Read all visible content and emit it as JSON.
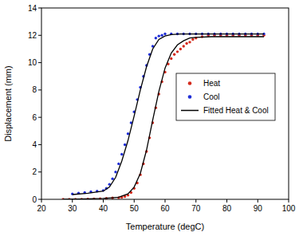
{
  "chart_data": {
    "type": "scatter",
    "x_label": "Temperature (degC)",
    "y_label": "Displacement (mm)",
    "xlim": [
      20,
      100
    ],
    "xticks": [
      20,
      30,
      40,
      50,
      60,
      70,
      80,
      90,
      100
    ],
    "ylim": [
      0,
      14
    ],
    "yticks": [
      0,
      2,
      4,
      6,
      8,
      10,
      12,
      14
    ],
    "grid": false,
    "legend": "right",
    "series": [
      {
        "name": "Heat",
        "type": "scatter",
        "color": "#d42a1c",
        "marker": "circle",
        "x": [
          27,
          29,
          31,
          33,
          35,
          37,
          39,
          41,
          43,
          45,
          46,
          47,
          48,
          49,
          50,
          51,
          52,
          53,
          54,
          55,
          56,
          57,
          58,
          59,
          60,
          61,
          62,
          63,
          64,
          65,
          66,
          67,
          68,
          69,
          70,
          72,
          74,
          76,
          78,
          80,
          82,
          84,
          86,
          88,
          90,
          92
        ],
        "values": [
          0,
          0,
          0,
          0,
          0.02,
          0.03,
          0.05,
          0.07,
          0.1,
          0.12,
          0.15,
          0.2,
          0.3,
          0.5,
          0.8,
          1.2,
          1.8,
          2.6,
          3.5,
          4.5,
          5.6,
          6.7,
          7.7,
          8.6,
          9.3,
          9.9,
          10.3,
          10.6,
          10.8,
          11,
          11.2,
          11.4,
          11.5,
          11.7,
          11.8,
          11.9,
          12,
          12,
          12,
          12,
          12,
          12,
          12,
          12,
          12,
          12
        ]
      },
      {
        "name": "Cool",
        "type": "scatter",
        "color": "#1f2ed6",
        "marker": "circle",
        "x": [
          30,
          32,
          34,
          36,
          38,
          40,
          41,
          42,
          43,
          44,
          45,
          46,
          47,
          48,
          49,
          50,
          51,
          52,
          53,
          54,
          55,
          56,
          57,
          58,
          59,
          60,
          62,
          64,
          66,
          68,
          70,
          72,
          74,
          76,
          78,
          80,
          82,
          84,
          86,
          88,
          90,
          92
        ],
        "values": [
          0.4,
          0.45,
          0.5,
          0.55,
          0.6,
          0.65,
          0.8,
          1.1,
          1.5,
          2,
          2.6,
          3.3,
          4,
          4.8,
          5.6,
          6.4,
          7.3,
          8.2,
          9,
          9.8,
          10.6,
          11.2,
          11.8,
          11.95,
          12,
          12.1,
          12.1,
          12.1,
          12.1,
          12.1,
          12.1,
          12.1,
          12.1,
          12.1,
          12.1,
          12.1,
          12.1,
          12.1,
          12.1,
          12.1,
          12.1,
          12.1
        ]
      },
      {
        "name": "Fitted Heat & Cool",
        "type": "line",
        "color": "#000000",
        "line_style": "solid",
        "x": [
          27,
          35,
          40,
          45,
          48,
          50,
          52,
          54,
          56,
          58,
          60,
          62,
          64,
          66,
          68,
          70,
          75,
          80,
          92,
          null,
          30,
          35,
          40,
          42,
          44,
          46,
          48,
          50,
          52,
          54,
          56,
          58,
          60,
          62,
          65,
          70,
          80,
          92
        ],
        "values": [
          0,
          0.03,
          0.07,
          0.15,
          0.4,
          0.9,
          1.9,
          3.6,
          5.8,
          7.9,
          9.6,
          10.7,
          11.3,
          11.6,
          11.8,
          11.85,
          11.9,
          11.9,
          11.9,
          null,
          0.35,
          0.45,
          0.6,
          0.9,
          1.6,
          2.8,
          4.3,
          6.1,
          8,
          9.7,
          11,
          11.7,
          11.95,
          12.05,
          12.1,
          12.1,
          12.1,
          12.1
        ]
      }
    ]
  }
}
